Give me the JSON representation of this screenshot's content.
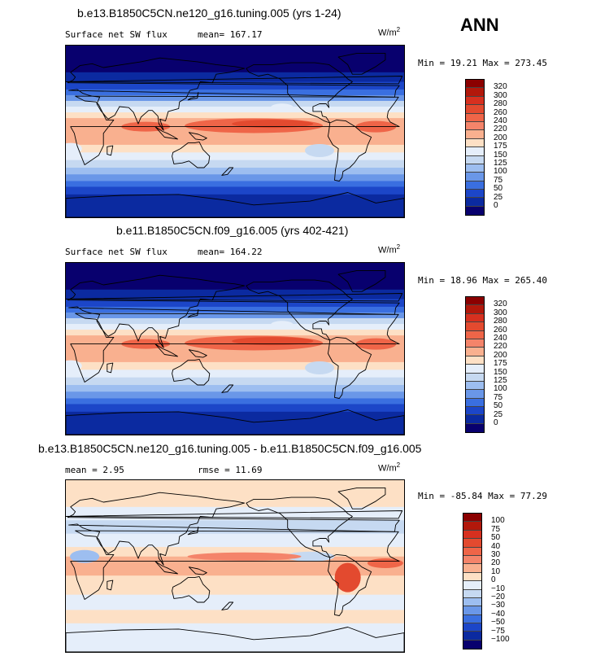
{
  "season": "ANN",
  "panels": [
    {
      "title": "b.e13.B1850C5CN.ne120_g16.tuning.005 (yrs 1-24)",
      "subtitle": "Surface net SW flux",
      "mean_text": "mean= 167.17",
      "units_base": "W/m",
      "units_exp": "2",
      "minmax_text": "Min =  19.21 Max = 273.45",
      "levels": [
        "320",
        "300",
        "280",
        "260",
        "240",
        "220",
        "200",
        "175",
        "150",
        "125",
        "100",
        "75",
        "50",
        "25",
        "0"
      ],
      "colors": [
        "#8b0000",
        "#b2180b",
        "#d7301f",
        "#e34a2f",
        "#ef6548",
        "#f4846a",
        "#f9b08f",
        "#fde0c5",
        "#e5eefa",
        "#c6d9f1",
        "#9dbef0",
        "#6a97e8",
        "#3a6fe0",
        "#1c46c8",
        "#0b2aa0",
        "#08006e"
      ]
    },
    {
      "title": "b.e11.B1850C5CN.f09_g16.005 (yrs 402-421)",
      "subtitle": "Surface net SW flux",
      "mean_text": "mean= 164.22",
      "units_base": "W/m",
      "units_exp": "2",
      "minmax_text": "Min =  18.96 Max = 265.40",
      "levels": [
        "320",
        "300",
        "280",
        "260",
        "240",
        "220",
        "200",
        "175",
        "150",
        "125",
        "100",
        "75",
        "50",
        "25",
        "0"
      ],
      "colors": [
        "#8b0000",
        "#b2180b",
        "#d7301f",
        "#e34a2f",
        "#ef6548",
        "#f4846a",
        "#f9b08f",
        "#fde0c5",
        "#e5eefa",
        "#c6d9f1",
        "#9dbef0",
        "#6a97e8",
        "#3a6fe0",
        "#1c46c8",
        "#0b2aa0",
        "#08006e"
      ]
    },
    {
      "title": "b.e13.B1850C5CN.ne120_g16.tuning.005 - b.e11.B1850C5CN.f09_g16.005",
      "mean_text": "mean =   2.95",
      "rmse_text": "rmse =  11.69",
      "units_base": "W/m",
      "units_exp": "2",
      "minmax_text": "Min = -85.84 Max =  77.29",
      "levels": [
        "100",
        "75",
        "50",
        "40",
        "30",
        "20",
        "10",
        "0",
        "−10",
        "−20",
        "−30",
        "−40",
        "−50",
        "−75",
        "−100"
      ],
      "colors": [
        "#8b0000",
        "#b2180b",
        "#d7301f",
        "#e34a2f",
        "#ef6548",
        "#f4846a",
        "#f9b08f",
        "#fde0c5",
        "#e5eefa",
        "#c6d9f1",
        "#9dbef0",
        "#6a97e8",
        "#3a6fe0",
        "#1c46c8",
        "#0b2aa0",
        "#08006e"
      ]
    }
  ],
  "chart_data": [
    {
      "type": "heatmap",
      "title": "b.e13.B1850C5CN.ne120_g16.tuning.005 (yrs 1-24)",
      "variable": "Surface net SW flux",
      "units": "W/m2",
      "mean": 167.17,
      "min": 19.21,
      "max": 273.45,
      "levels": [
        0,
        25,
        50,
        75,
        100,
        125,
        150,
        175,
        200,
        220,
        240,
        260,
        280,
        300,
        320
      ]
    },
    {
      "type": "heatmap",
      "title": "b.e11.B1850C5CN.f09_g16.005 (yrs 402-421)",
      "variable": "Surface net SW flux",
      "units": "W/m2",
      "mean": 164.22,
      "min": 18.96,
      "max": 265.4,
      "levels": [
        0,
        25,
        50,
        75,
        100,
        125,
        150,
        175,
        200,
        220,
        240,
        260,
        280,
        300,
        320
      ]
    },
    {
      "type": "heatmap",
      "title": "b.e13.B1850C5CN.ne120_g16.tuning.005 - b.e11.B1850C5CN.f09_g16.005",
      "units": "W/m2",
      "mean": 2.95,
      "rmse": 11.69,
      "min": -85.84,
      "max": 77.29,
      "levels": [
        -100,
        -75,
        -50,
        -40,
        -30,
        -20,
        -10,
        0,
        10,
        20,
        30,
        40,
        50,
        75,
        100
      ]
    }
  ]
}
